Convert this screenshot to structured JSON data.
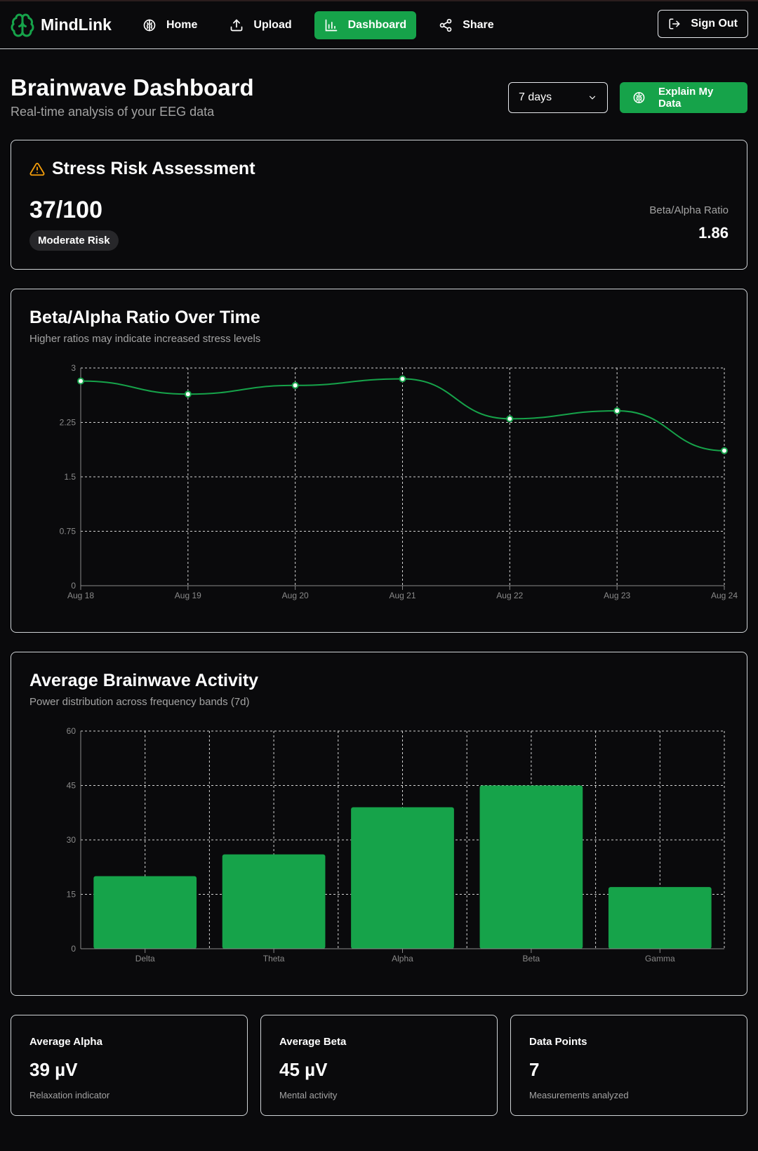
{
  "nav": {
    "brand": "MindLink",
    "items": [
      {
        "label": "Home",
        "icon": "brain-icon",
        "active": false
      },
      {
        "label": "Upload",
        "icon": "upload-icon",
        "active": false
      },
      {
        "label": "Dashboard",
        "icon": "bar-chart-icon",
        "active": true
      },
      {
        "label": "Share",
        "icon": "share-icon",
        "active": false
      }
    ],
    "sign_out": "Sign Out"
  },
  "header": {
    "title": "Brainwave Dashboard",
    "subtitle": "Real-time analysis of your EEG data",
    "range_value": "7 days",
    "explain_label": "Explain My Data"
  },
  "stress": {
    "title": "Stress Risk Assessment",
    "score": "37/100",
    "badge": "Moderate Risk",
    "ratio_label": "Beta/Alpha Ratio",
    "ratio_value": "1.86"
  },
  "line_card": {
    "title": "Beta/Alpha Ratio Over Time",
    "subtitle": "Higher ratios may indicate increased stress levels"
  },
  "bar_card": {
    "title": "Average Brainwave Activity",
    "subtitle": "Power distribution across frequency bands (7d)"
  },
  "stats": [
    {
      "label": "Average Alpha",
      "value": "39 µV",
      "desc": "Relaxation indicator"
    },
    {
      "label": "Average Beta",
      "value": "45 µV",
      "desc": "Mental activity"
    },
    {
      "label": "Data Points",
      "value": "7",
      "desc": "Measurements analyzed"
    }
  ],
  "colors": {
    "accent": "#16a34a",
    "background": "#0a0a0c",
    "warning": "#f59e0b"
  },
  "chart_data": [
    {
      "type": "line",
      "x": [
        "Aug 18",
        "Aug 19",
        "Aug 20",
        "Aug 21",
        "Aug 22",
        "Aug 23",
        "Aug 24"
      ],
      "values": [
        2.82,
        2.64,
        2.76,
        2.85,
        2.3,
        2.41,
        1.86
      ],
      "yticks": [
        "0",
        "0.75",
        "1.5",
        "2.25",
        "3"
      ],
      "ylim": [
        0,
        3
      ],
      "grid": true,
      "color": "#16a34a"
    },
    {
      "type": "bar",
      "categories": [
        "Delta",
        "Theta",
        "Alpha",
        "Beta",
        "Gamma"
      ],
      "values": [
        20,
        26,
        39,
        45,
        17
      ],
      "yticks": [
        "0",
        "15",
        "30",
        "45",
        "60"
      ],
      "ylim": [
        0,
        60
      ],
      "grid": true,
      "color": "#16a34a"
    }
  ]
}
